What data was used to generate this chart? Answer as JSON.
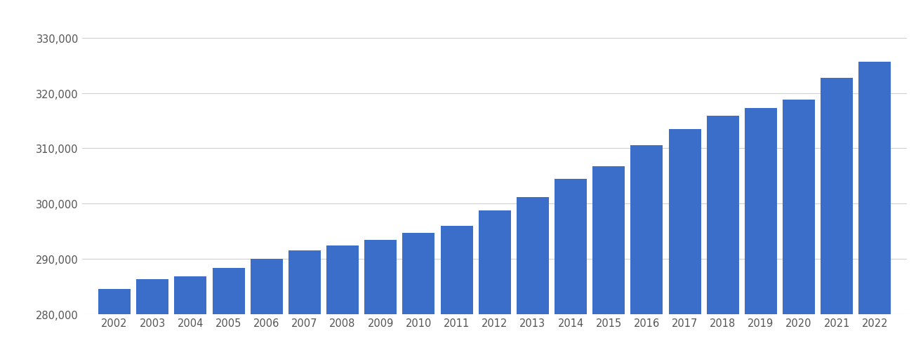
{
  "years": [
    2002,
    2003,
    2004,
    2005,
    2006,
    2007,
    2008,
    2009,
    2010,
    2011,
    2012,
    2013,
    2014,
    2015,
    2016,
    2017,
    2018,
    2019,
    2020,
    2021,
    2022
  ],
  "values": [
    284600,
    286300,
    286800,
    288300,
    290000,
    291500,
    292400,
    293400,
    294700,
    296000,
    298700,
    301200,
    304500,
    306800,
    310600,
    313500,
    315900,
    317300,
    318800,
    322700,
    325600
  ],
  "bar_color": "#3b6ec8",
  "background_color": "#ffffff",
  "ylim": [
    280000,
    335000
  ],
  "yticks": [
    280000,
    290000,
    300000,
    310000,
    320000,
    330000
  ],
  "grid_color": "#d0d0d0",
  "tick_color": "#555555",
  "tick_fontsize": 10.5,
  "bar_width": 0.85
}
